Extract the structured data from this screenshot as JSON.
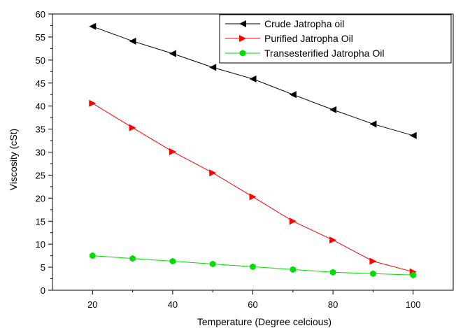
{
  "chart_data": {
    "type": "line",
    "title": "",
    "xlabel": "Temperature (Degree celcious)",
    "ylabel": "Viscosity (cSt)",
    "xlim": [
      10,
      110
    ],
    "ylim": [
      0,
      60
    ],
    "x_ticks": [
      20,
      40,
      60,
      80,
      100
    ],
    "y_ticks": [
      0,
      5,
      10,
      15,
      20,
      25,
      30,
      35,
      40,
      45,
      50,
      55,
      60
    ],
    "x": [
      20,
      30,
      40,
      50,
      60,
      70,
      80,
      90,
      100
    ],
    "grid": false,
    "legend_position": "top-right",
    "series": [
      {
        "name": "Crude Jatropha oil",
        "color": "#000000",
        "marker": "left-triangle",
        "values": [
          57.3,
          54.1,
          51.4,
          48.4,
          45.9,
          42.5,
          39.2,
          36.1,
          33.6
        ]
      },
      {
        "name": "Purified Jatropha Oil",
        "color": "#ff0000",
        "marker": "right-triangle",
        "values": [
          40.6,
          35.3,
          30.1,
          25.5,
          20.3,
          15.0,
          10.9,
          6.3,
          4.0
        ]
      },
      {
        "name": "Transesterified Jatropha Oil",
        "color": "#00dd00",
        "marker": "hexagon",
        "values": [
          7.5,
          6.9,
          6.3,
          5.7,
          5.1,
          4.5,
          3.9,
          3.6,
          3.3
        ]
      }
    ]
  }
}
